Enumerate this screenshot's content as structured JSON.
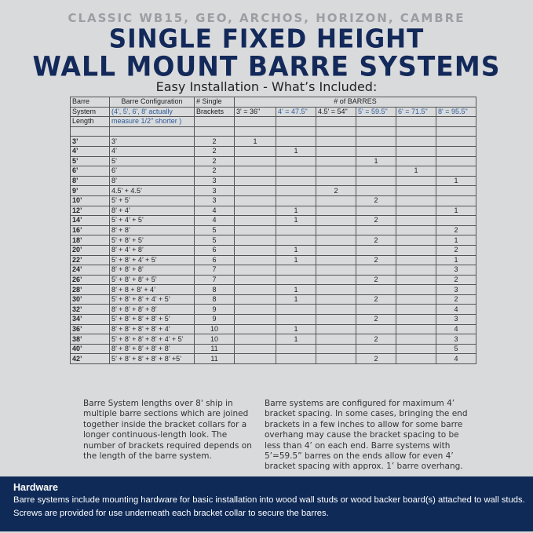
{
  "subtitle": "CLASSIC WB15, GEO, ARCHOS, HORIZON, CAMBRE",
  "title_line1": "SINGLE FIXED HEIGHT",
  "title_line2": "WALL MOUNT BARRE SYSTEMS",
  "section_heading": "Easy Installation - What’s Included:",
  "colors": {
    "navy": "#0f2a57",
    "background": "#d9dadc",
    "blue_text": "#2e5d9a"
  },
  "table": {
    "header_rows": [
      [
        "Barre",
        "Barre Configuration",
        "# Single",
        "# of BARRES"
      ],
      [
        "System",
        "(4', 5', 6', 8' actually",
        "Brackets",
        "3' = 36\"",
        "4' = 47.5\"",
        "4.5' = 54\"",
        "5' = 59.5\"",
        "6' = 71.5\"",
        "8' = 95.5\""
      ],
      [
        "Length",
        "measure 1/2\" shorter )"
      ]
    ],
    "rows": [
      [
        "3’",
        "3’",
        "2",
        "1",
        "",
        "",
        "",
        "",
        ""
      ],
      [
        "4’",
        "4’",
        "2",
        "",
        "1",
        "",
        "",
        "",
        ""
      ],
      [
        "5’",
        "5’",
        "2",
        "",
        "",
        "",
        "1",
        "",
        ""
      ],
      [
        "6’",
        "6’",
        "2",
        "",
        "",
        "",
        "",
        "1",
        ""
      ],
      [
        "8’",
        "8’",
        "3",
        "",
        "",
        "",
        "",
        "",
        "1"
      ],
      [
        "9’",
        "4.5’ + 4.5’",
        "3",
        "",
        "",
        "2",
        "",
        "",
        ""
      ],
      [
        "10’",
        "5’ + 5’",
        "3",
        "",
        "",
        "",
        "2",
        "",
        ""
      ],
      [
        "12’",
        "8’ + 4’",
        "4",
        "",
        "1",
        "",
        "",
        "",
        "1"
      ],
      [
        "14’",
        "5’ + 4’ + 5’",
        "4",
        "",
        "1",
        "",
        "2",
        "",
        ""
      ],
      [
        "16’",
        "8’ + 8’",
        "5",
        "",
        "",
        "",
        "",
        "",
        "2"
      ],
      [
        "18’",
        "5’ + 8’ + 5’",
        "5",
        "",
        "",
        "",
        "2",
        "",
        "1"
      ],
      [
        "20’",
        "8’ + 4’ + 8’",
        "6",
        "",
        "1",
        "",
        "",
        "",
        "2"
      ],
      [
        "22’",
        "5’ + 8’ + 4’ + 5’",
        "6",
        "",
        "1",
        "",
        "2",
        "",
        "1"
      ],
      [
        "24’",
        "8’ + 8’ + 8’",
        "7",
        "",
        "",
        "",
        "",
        "",
        "3"
      ],
      [
        "26’",
        "5’ + 8’ + 8’ + 5’",
        "7",
        "",
        "",
        "",
        "2",
        "",
        "2"
      ],
      [
        "28’",
        "8’ + 8 + 8’ + 4’",
        "8",
        "",
        "1",
        "",
        "",
        "",
        "3"
      ],
      [
        "30’",
        "5’ + 8’ + 8’ + 4’ + 5’",
        "8",
        "",
        "1",
        "",
        "2",
        "",
        "2"
      ],
      [
        "32’",
        "8’ + 8’ + 8’ + 8’",
        "9",
        "",
        "",
        "",
        "",
        "",
        "4"
      ],
      [
        "34’",
        "5’ + 8’ + 8’ + 8’ + 5’",
        "9",
        "",
        "",
        "",
        "2",
        "",
        "3"
      ],
      [
        "36’",
        "8’ + 8’ + 8’ + 8’ + 4’",
        "10",
        "",
        "1",
        "",
        "",
        "",
        "4"
      ],
      [
        "38’",
        "5’ + 8’ + 8’ + 8’ + 4’ + 5’",
        "10",
        "",
        "1",
        "",
        "2",
        "",
        "3"
      ],
      [
        "40’",
        "8’ + 8’ + 8’ + 8’ + 8’",
        "11",
        "",
        "",
        "",
        "",
        "",
        "5"
      ],
      [
        "42’",
        "5’ + 8’ + 8’ + 8’ + 8’ +5’",
        "11",
        "",
        "",
        "",
        "2",
        "",
        "4"
      ]
    ]
  },
  "note_left": "Barre System lengths over 8' ship in multiple barre sections which are joined together inside the bracket collars for a longer continuous-length look. The number of brackets required depends on the length of the barre system.",
  "note_right": "Barre systems are configured for maximum 4’ bracket spacing.  In some cases, bringing the end brackets in a few inches to allow for some barre overhang may cause the bracket spacing to be less than 4’ on each end.  Barre systems with 5’=59.5” barres on the ends allow for even 4’ bracket spacing with approx. 1’ barre overhang.",
  "hardware": {
    "heading": "Hardware",
    "text": "Barre systems include mounting hardware for basic installation into wood wall studs or wood backer board(s) attached to wall studs. Screws are provided for use underneath each bracket collar to secure the barres."
  }
}
